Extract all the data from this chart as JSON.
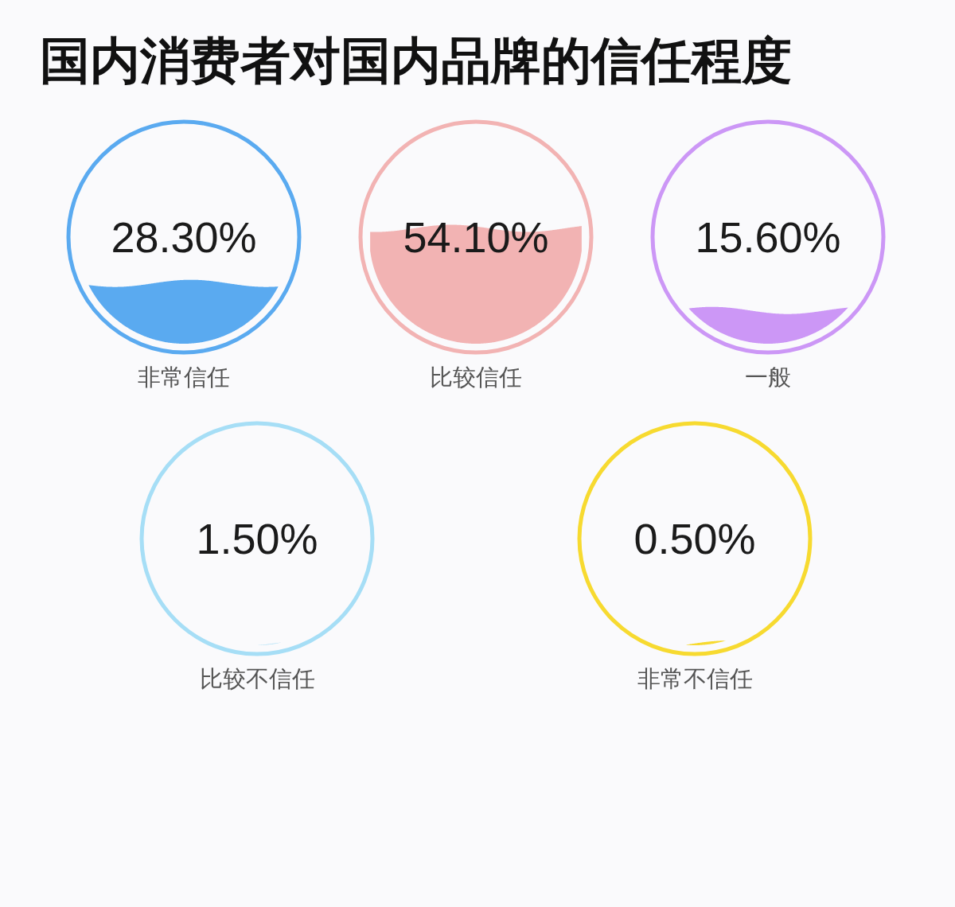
{
  "chart_data": {
    "type": "other",
    "title": "国内消费者对国内品牌的信任程度",
    "categories": [
      "非常信任",
      "比较信任",
      "一般",
      "比较不信任",
      "非常不信任"
    ],
    "values": [
      28.3,
      54.1,
      15.6,
      1.5,
      0.5
    ],
    "value_labels": [
      "28.30%",
      "54.10%",
      "15.60%",
      "1.50%",
      "0.50%"
    ],
    "colors": [
      "#5aaaf0",
      "#f2b3b3",
      "#cc97f6",
      "#a6def6",
      "#f7da30"
    ]
  }
}
